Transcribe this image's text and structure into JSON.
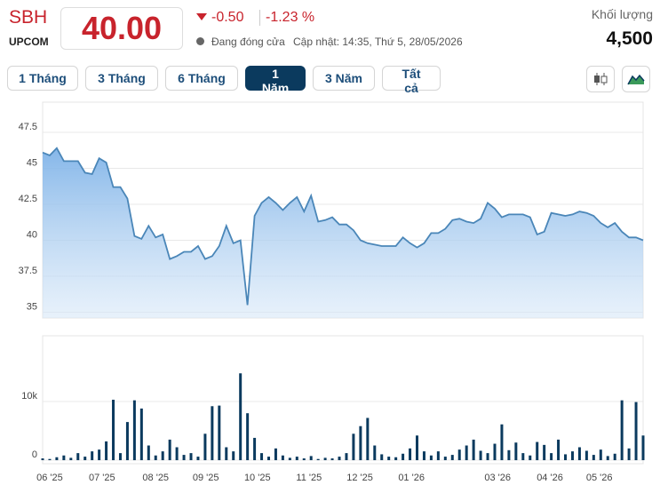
{
  "header": {
    "symbol": "SBH",
    "exchange": "UPCOM",
    "price": "40.00",
    "change": "-0.50",
    "change_pct": "-1.23 %",
    "status": "Đang đóng cửa",
    "updated": "Cập nhật: 14:35, Thứ 5, 28/05/2026",
    "volume_label": "Khối lượng",
    "volume": "4,500"
  },
  "ranges": [
    "1 Tháng",
    "3 Tháng",
    "6 Tháng",
    "1 Năm",
    "3 Năm",
    "Tất cả"
  ],
  "active_range": 3,
  "chart_data": [
    {
      "type": "area",
      "color": "#4a86b8",
      "xlim": [
        0,
        85
      ],
      "ylim": [
        34.6,
        49.6
      ],
      "yticks": [
        35,
        37.5,
        40,
        42.5,
        45,
        47.5
      ],
      "grid": true,
      "values": [
        46.1,
        45.9,
        46.4,
        45.5,
        45.5,
        45.5,
        44.7,
        44.6,
        45.7,
        45.4,
        43.7,
        43.7,
        42.9,
        40.3,
        40.1,
        41.0,
        40.2,
        40.4,
        38.7,
        38.9,
        39.2,
        39.2,
        39.6,
        38.7,
        38.9,
        39.6,
        41.0,
        39.8,
        40.0,
        35.5,
        41.7,
        42.6,
        43.0,
        42.6,
        42.1,
        42.6,
        43.0,
        42.0,
        43.1,
        41.3,
        41.4,
        41.6,
        41.1,
        41.1,
        40.7,
        40.0,
        39.8,
        39.7,
        39.6,
        39.6,
        39.6,
        40.2,
        39.8,
        39.5,
        39.8,
        40.5,
        40.5,
        40.8,
        41.4,
        41.5,
        41.3,
        41.2,
        41.5,
        42.6,
        42.2,
        41.6,
        41.8,
        41.8,
        41.8,
        41.6,
        40.4,
        40.6,
        41.9,
        41.8,
        41.7,
        41.8,
        42.0,
        41.9,
        41.7,
        41.2,
        40.9,
        41.2,
        40.6,
        40.2,
        40.2,
        40.0
      ]
    },
    {
      "type": "bar",
      "color": "#0b3a5e",
      "xlim": [
        0,
        85
      ],
      "ylim": [
        -600,
        21200
      ],
      "yticks": [
        0,
        {
          "value": 10000,
          "label": "10k"
        }
      ],
      "grid": true,
      "xticks": [
        {
          "value": 1.0,
          "label": "06 '25"
        },
        {
          "value": 8.4,
          "label": "07 '25"
        },
        {
          "value": 16.0,
          "label": "08 '25"
        },
        {
          "value": 23.1,
          "label": "09 '25"
        },
        {
          "value": 30.4,
          "label": "10 '25"
        },
        {
          "value": 37.7,
          "label": "11 '25"
        },
        {
          "value": 44.9,
          "label": "12 '25"
        },
        {
          "value": 52.2,
          "label": "01 '26"
        },
        {
          "value": 64.4,
          "label": "03 '26"
        },
        {
          "value": 71.8,
          "label": "04 '26"
        },
        {
          "value": 78.8,
          "label": "05 '26"
        }
      ],
      "values": [
        300,
        200,
        500,
        800,
        400,
        1200,
        600,
        1500,
        1800,
        3200,
        10300,
        1200,
        6500,
        10200,
        8800,
        2500,
        800,
        1500,
        3500,
        2200,
        900,
        1200,
        600,
        4500,
        9200,
        9300,
        2200,
        1500,
        14800,
        8000,
        3800,
        1200,
        600,
        2000,
        800,
        400,
        600,
        300,
        700,
        200,
        400,
        300,
        600,
        1200,
        4500,
        5800,
        7200,
        2500,
        1000,
        600,
        500,
        1100,
        2000,
        4200,
        1500,
        800,
        1500,
        600,
        900,
        1800,
        2500,
        3500,
        1600,
        1200,
        2800,
        6100,
        1700,
        3000,
        1200,
        800,
        3100,
        2600,
        1200,
        3500,
        1000,
        1500,
        2200,
        1600,
        900,
        1800,
        700,
        1100,
        10200,
        2000,
        9900,
        4200
      ]
    }
  ]
}
